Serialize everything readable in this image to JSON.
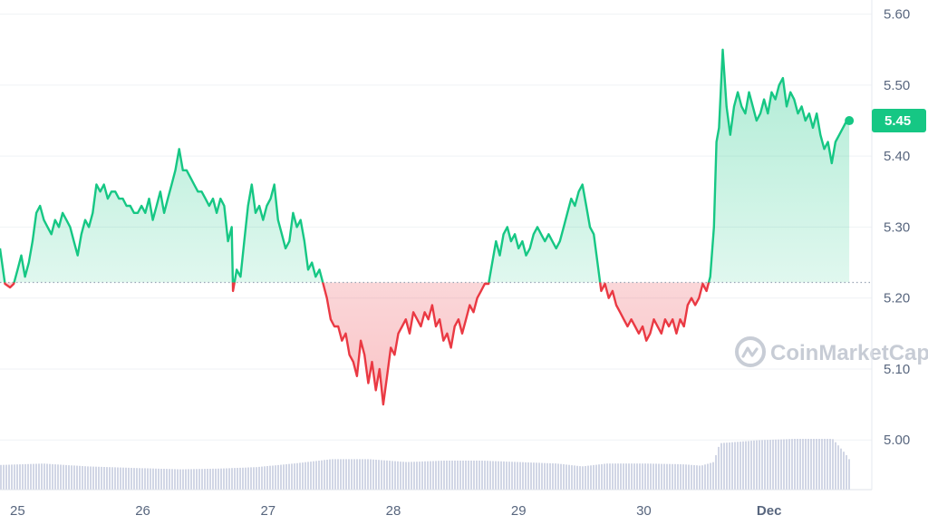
{
  "chart_data": {
    "type": "area",
    "baseline": 5.222,
    "current_label": "5.45",
    "ylim": [
      4.93,
      5.62
    ],
    "yticks": [
      "5.60",
      "5.50",
      "5.40",
      "5.30",
      "5.20",
      "5.10",
      "5.00"
    ],
    "ytick_values": [
      5.6,
      5.5,
      5.4,
      5.3,
      5.2,
      5.1,
      5.0
    ],
    "xlim": [
      24.86,
      31.82
    ],
    "xticks": [
      "25",
      "26",
      "27",
      "28",
      "29",
      "30",
      "Dec"
    ],
    "xtick_values": [
      25,
      26,
      27,
      28,
      29,
      30,
      31
    ],
    "grid": true,
    "colors": {
      "up": "#16c784",
      "down": "#ea3943",
      "volume": "#c9cfe0",
      "axis_text": "#58667e"
    },
    "series": [
      {
        "values": [
          [
            24.86,
            5.27
          ],
          [
            24.9,
            5.22
          ],
          [
            24.94,
            5.215
          ],
          [
            24.97,
            5.22
          ],
          [
            25.0,
            5.24
          ],
          [
            25.03,
            5.26
          ],
          [
            25.06,
            5.23
          ],
          [
            25.09,
            5.25
          ],
          [
            25.12,
            5.28
          ],
          [
            25.15,
            5.32
          ],
          [
            25.18,
            5.33
          ],
          [
            25.21,
            5.31
          ],
          [
            25.24,
            5.3
          ],
          [
            25.27,
            5.29
          ],
          [
            25.3,
            5.31
          ],
          [
            25.33,
            5.3
          ],
          [
            25.36,
            5.32
          ],
          [
            25.39,
            5.31
          ],
          [
            25.42,
            5.3
          ],
          [
            25.45,
            5.28
          ],
          [
            25.48,
            5.26
          ],
          [
            25.51,
            5.29
          ],
          [
            25.54,
            5.31
          ],
          [
            25.57,
            5.3
          ],
          [
            25.6,
            5.32
          ],
          [
            25.63,
            5.36
          ],
          [
            25.66,
            5.35
          ],
          [
            25.69,
            5.36
          ],
          [
            25.72,
            5.34
          ],
          [
            25.75,
            5.35
          ],
          [
            25.78,
            5.35
          ],
          [
            25.81,
            5.34
          ],
          [
            25.84,
            5.34
          ],
          [
            25.87,
            5.33
          ],
          [
            25.9,
            5.33
          ],
          [
            25.93,
            5.32
          ],
          [
            25.96,
            5.32
          ],
          [
            25.99,
            5.33
          ],
          [
            26.02,
            5.32
          ],
          [
            26.05,
            5.34
          ],
          [
            26.08,
            5.31
          ],
          [
            26.11,
            5.33
          ],
          [
            26.14,
            5.35
          ],
          [
            26.17,
            5.32
          ],
          [
            26.2,
            5.34
          ],
          [
            26.23,
            5.36
          ],
          [
            26.26,
            5.38
          ],
          [
            26.29,
            5.41
          ],
          [
            26.32,
            5.38
          ],
          [
            26.35,
            5.38
          ],
          [
            26.38,
            5.37
          ],
          [
            26.41,
            5.36
          ],
          [
            26.44,
            5.35
          ],
          [
            26.47,
            5.35
          ],
          [
            26.5,
            5.34
          ],
          [
            26.53,
            5.33
          ],
          [
            26.56,
            5.34
          ],
          [
            26.59,
            5.32
          ],
          [
            26.62,
            5.34
          ],
          [
            26.65,
            5.33
          ],
          [
            26.68,
            5.28
          ],
          [
            26.71,
            5.3
          ],
          [
            26.72,
            5.21
          ],
          [
            26.75,
            5.24
          ],
          [
            26.78,
            5.23
          ],
          [
            26.81,
            5.28
          ],
          [
            26.84,
            5.33
          ],
          [
            26.87,
            5.36
          ],
          [
            26.9,
            5.32
          ],
          [
            26.93,
            5.33
          ],
          [
            26.96,
            5.31
          ],
          [
            26.99,
            5.33
          ],
          [
            27.02,
            5.34
          ],
          [
            27.05,
            5.36
          ],
          [
            27.08,
            5.31
          ],
          [
            27.11,
            5.29
          ],
          [
            27.14,
            5.27
          ],
          [
            27.17,
            5.28
          ],
          [
            27.2,
            5.32
          ],
          [
            27.23,
            5.3
          ],
          [
            27.26,
            5.31
          ],
          [
            27.29,
            5.28
          ],
          [
            27.32,
            5.24
          ],
          [
            27.35,
            5.25
          ],
          [
            27.38,
            5.23
          ],
          [
            27.41,
            5.24
          ],
          [
            27.44,
            5.22
          ],
          [
            27.47,
            5.2
          ],
          [
            27.5,
            5.17
          ],
          [
            27.53,
            5.16
          ],
          [
            27.56,
            5.16
          ],
          [
            27.59,
            5.14
          ],
          [
            27.62,
            5.15
          ],
          [
            27.65,
            5.12
          ],
          [
            27.68,
            5.11
          ],
          [
            27.71,
            5.09
          ],
          [
            27.74,
            5.14
          ],
          [
            27.77,
            5.12
          ],
          [
            27.8,
            5.08
          ],
          [
            27.83,
            5.11
          ],
          [
            27.86,
            5.07
          ],
          [
            27.89,
            5.1
          ],
          [
            27.92,
            5.05
          ],
          [
            27.95,
            5.09
          ],
          [
            27.98,
            5.13
          ],
          [
            28.01,
            5.12
          ],
          [
            28.04,
            5.15
          ],
          [
            28.07,
            5.16
          ],
          [
            28.1,
            5.17
          ],
          [
            28.13,
            5.15
          ],
          [
            28.16,
            5.18
          ],
          [
            28.19,
            5.17
          ],
          [
            28.22,
            5.16
          ],
          [
            28.25,
            5.18
          ],
          [
            28.28,
            5.17
          ],
          [
            28.31,
            5.19
          ],
          [
            28.34,
            5.16
          ],
          [
            28.37,
            5.17
          ],
          [
            28.4,
            5.14
          ],
          [
            28.43,
            5.15
          ],
          [
            28.46,
            5.13
          ],
          [
            28.49,
            5.16
          ],
          [
            28.52,
            5.17
          ],
          [
            28.55,
            5.15
          ],
          [
            28.58,
            5.17
          ],
          [
            28.61,
            5.19
          ],
          [
            28.64,
            5.18
          ],
          [
            28.67,
            5.2
          ],
          [
            28.7,
            5.21
          ],
          [
            28.73,
            5.22
          ],
          [
            28.76,
            5.22
          ],
          [
            28.79,
            5.25
          ],
          [
            28.82,
            5.28
          ],
          [
            28.85,
            5.26
          ],
          [
            28.88,
            5.29
          ],
          [
            28.91,
            5.3
          ],
          [
            28.94,
            5.28
          ],
          [
            28.97,
            5.29
          ],
          [
            29.0,
            5.27
          ],
          [
            29.03,
            5.28
          ],
          [
            29.06,
            5.26
          ],
          [
            29.09,
            5.27
          ],
          [
            29.12,
            5.29
          ],
          [
            29.15,
            5.3
          ],
          [
            29.18,
            5.29
          ],
          [
            29.21,
            5.28
          ],
          [
            29.24,
            5.29
          ],
          [
            29.27,
            5.28
          ],
          [
            29.3,
            5.27
          ],
          [
            29.33,
            5.28
          ],
          [
            29.36,
            5.3
          ],
          [
            29.39,
            5.32
          ],
          [
            29.42,
            5.34
          ],
          [
            29.45,
            5.33
          ],
          [
            29.48,
            5.35
          ],
          [
            29.51,
            5.36
          ],
          [
            29.54,
            5.33
          ],
          [
            29.57,
            5.3
          ],
          [
            29.6,
            5.29
          ],
          [
            29.63,
            5.25
          ],
          [
            29.66,
            5.21
          ],
          [
            29.69,
            5.22
          ],
          [
            29.72,
            5.2
          ],
          [
            29.75,
            5.21
          ],
          [
            29.78,
            5.19
          ],
          [
            29.81,
            5.18
          ],
          [
            29.84,
            5.17
          ],
          [
            29.87,
            5.16
          ],
          [
            29.9,
            5.17
          ],
          [
            29.93,
            5.16
          ],
          [
            29.96,
            5.15
          ],
          [
            29.99,
            5.16
          ],
          [
            30.02,
            5.14
          ],
          [
            30.05,
            5.15
          ],
          [
            30.08,
            5.17
          ],
          [
            30.11,
            5.16
          ],
          [
            30.14,
            5.15
          ],
          [
            30.17,
            5.17
          ],
          [
            30.2,
            5.16
          ],
          [
            30.23,
            5.17
          ],
          [
            30.26,
            5.15
          ],
          [
            30.29,
            5.17
          ],
          [
            30.32,
            5.16
          ],
          [
            30.35,
            5.19
          ],
          [
            30.38,
            5.2
          ],
          [
            30.41,
            5.19
          ],
          [
            30.44,
            5.2
          ],
          [
            30.47,
            5.22
          ],
          [
            30.5,
            5.21
          ],
          [
            30.53,
            5.23
          ],
          [
            30.56,
            5.3
          ],
          [
            30.58,
            5.42
          ],
          [
            30.6,
            5.44
          ],
          [
            30.63,
            5.55
          ],
          [
            30.66,
            5.47
          ],
          [
            30.69,
            5.43
          ],
          [
            30.72,
            5.47
          ],
          [
            30.75,
            5.49
          ],
          [
            30.78,
            5.47
          ],
          [
            30.81,
            5.46
          ],
          [
            30.84,
            5.49
          ],
          [
            30.87,
            5.47
          ],
          [
            30.9,
            5.45
          ],
          [
            30.93,
            5.46
          ],
          [
            30.96,
            5.48
          ],
          [
            30.99,
            5.46
          ],
          [
            31.02,
            5.49
          ],
          [
            31.05,
            5.48
          ],
          [
            31.08,
            5.5
          ],
          [
            31.11,
            5.51
          ],
          [
            31.14,
            5.47
          ],
          [
            31.17,
            5.49
          ],
          [
            31.2,
            5.48
          ],
          [
            31.23,
            5.46
          ],
          [
            31.26,
            5.47
          ],
          [
            31.29,
            5.45
          ],
          [
            31.32,
            5.46
          ],
          [
            31.35,
            5.44
          ],
          [
            31.38,
            5.46
          ],
          [
            31.41,
            5.43
          ],
          [
            31.44,
            5.41
          ],
          [
            31.47,
            5.42
          ],
          [
            31.5,
            5.39
          ],
          [
            31.53,
            5.42
          ],
          [
            31.56,
            5.43
          ],
          [
            31.59,
            5.44
          ],
          [
            31.62,
            5.45
          ],
          [
            31.64,
            5.45
          ]
        ]
      }
    ],
    "volume_levels": [
      [
        24.86,
        0.34
      ],
      [
        25.2,
        0.36
      ],
      [
        25.55,
        0.32
      ],
      [
        25.9,
        0.3
      ],
      [
        26.3,
        0.28
      ],
      [
        26.6,
        0.29
      ],
      [
        26.9,
        0.31
      ],
      [
        27.2,
        0.36
      ],
      [
        27.5,
        0.42
      ],
      [
        27.8,
        0.42
      ],
      [
        28.1,
        0.38
      ],
      [
        28.4,
        0.4
      ],
      [
        28.7,
        0.4
      ],
      [
        29.0,
        0.38
      ],
      [
        29.3,
        0.36
      ],
      [
        29.5,
        0.32
      ],
      [
        29.7,
        0.36
      ],
      [
        30.0,
        0.36
      ],
      [
        30.3,
        0.35
      ],
      [
        30.45,
        0.33
      ],
      [
        30.55,
        0.38
      ],
      [
        30.6,
        0.64
      ],
      [
        30.9,
        0.68
      ],
      [
        31.2,
        0.7
      ],
      [
        31.5,
        0.7
      ],
      [
        31.6,
        0.5
      ],
      [
        31.64,
        0.4
      ]
    ]
  },
  "watermark": {
    "text": "CoinMarketCap"
  }
}
